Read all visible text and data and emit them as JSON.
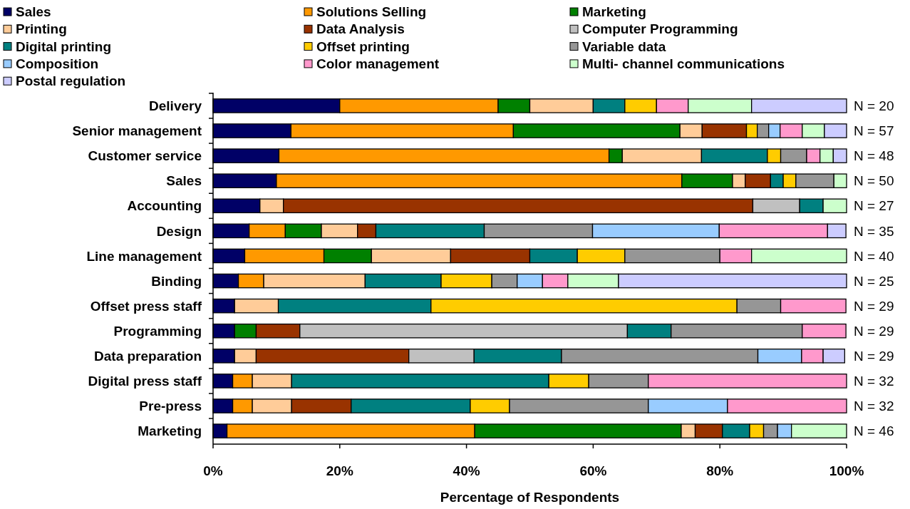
{
  "chart_data": {
    "type": "bar",
    "orientation": "horizontal",
    "stacked": true,
    "xlabel": "Percentage of Respondents",
    "categories": [
      "Delivery",
      "Senior management",
      "Customer service",
      "Sales",
      "Accounting",
      "Design",
      "Line management",
      "Binding",
      "Offset press staff",
      "Programming",
      "Data preparation",
      "Digital press staff",
      "Pre-press",
      "Marketing"
    ],
    "xlim": [
      0,
      100
    ],
    "xticks": [
      {
        "value": 0,
        "label": "0%"
      },
      {
        "value": 20,
        "label": "20%"
      },
      {
        "value": 40,
        "label": "40%"
      },
      {
        "value": 60,
        "label": "60%"
      },
      {
        "value": 80,
        "label": "80%"
      },
      {
        "value": 100,
        "label": "100%"
      }
    ],
    "grid": false,
    "legend": "top",
    "series": [
      {
        "name": "Sales",
        "color": "#000066",
        "values": [
          20,
          12.3,
          10.4,
          10,
          7.4,
          5.7,
          5,
          4,
          3.4,
          3.4,
          3.4,
          3.1,
          3.1,
          2.2
        ]
      },
      {
        "name": "Solutions Selling",
        "color": "#ff9900",
        "values": [
          25,
          35.1,
          52.1,
          64,
          null,
          5.7,
          12.5,
          4,
          null,
          null,
          null,
          3.1,
          3.1,
          39.1
        ]
      },
      {
        "name": "Marketing",
        "color": "#008000",
        "values": [
          5,
          26.3,
          2.1,
          8,
          null,
          5.7,
          7.5,
          null,
          null,
          3.4,
          null,
          null,
          null,
          32.6
        ]
      },
      {
        "name": "Printing",
        "color": "#ffcc99",
        "values": [
          10,
          3.5,
          12.5,
          2,
          3.7,
          5.7,
          12.5,
          16,
          6.9,
          null,
          3.4,
          6.2,
          6.2,
          2.2
        ]
      },
      {
        "name": "Data Analysis",
        "color": "#993300",
        "values": [
          null,
          7.0,
          null,
          4,
          74.1,
          2.9,
          12.5,
          null,
          null,
          6.9,
          24.1,
          null,
          9.4,
          4.3
        ]
      },
      {
        "name": "Computer Programming",
        "color": "#c0c0c0",
        "values": [
          null,
          null,
          null,
          null,
          7.4,
          null,
          null,
          null,
          null,
          51.7,
          10.3,
          null,
          null,
          null
        ]
      },
      {
        "name": "Digital printing",
        "color": "#008080",
        "values": [
          5,
          null,
          10.4,
          2,
          3.7,
          17.1,
          7.5,
          12,
          24.1,
          6.9,
          13.8,
          40.6,
          18.8,
          4.3
        ]
      },
      {
        "name": "Offset printing",
        "color": "#ffcc00",
        "values": [
          5,
          1.7,
          2.1,
          2,
          null,
          null,
          7.5,
          8,
          48.3,
          null,
          null,
          6.3,
          6.2,
          2.2
        ]
      },
      {
        "name": "Variable data",
        "color": "#969696",
        "values": [
          null,
          1.8,
          4.1,
          6,
          null,
          17.1,
          15,
          4,
          6.9,
          20.7,
          31.0,
          9.4,
          21.9,
          2.2
        ]
      },
      {
        "name": "Composition",
        "color": "#99ccff",
        "values": [
          null,
          1.8,
          null,
          null,
          null,
          20,
          null,
          4,
          null,
          null,
          6.9,
          null,
          12.5,
          2.2
        ]
      },
      {
        "name": "Color management",
        "color": "#ff99cc",
        "values": [
          5,
          3.5,
          2.1,
          null,
          null,
          17.1,
          5,
          4,
          10.3,
          6.9,
          3.4,
          31.3,
          18.8,
          null
        ]
      },
      {
        "name": "Multi- channel communications",
        "color": "#ccffcc",
        "values": [
          10,
          3.5,
          2.1,
          2,
          3.7,
          null,
          15,
          8,
          null,
          null,
          null,
          null,
          null,
          8.7
        ]
      },
      {
        "name": "Postal regulation",
        "color": "#ccccff",
        "values": [
          15,
          3.5,
          2.1,
          null,
          null,
          2.9,
          null,
          36,
          null,
          null,
          3.4,
          null,
          null,
          null
        ]
      }
    ],
    "annotations": [
      "N = 20",
      "N = 57",
      "N = 48",
      "N = 50",
      "N = 27",
      "N = 35",
      "N = 40",
      "N = 25",
      "N = 29",
      "N = 29",
      "N = 29",
      "N = 32",
      "N = 32",
      "N = 46"
    ]
  }
}
